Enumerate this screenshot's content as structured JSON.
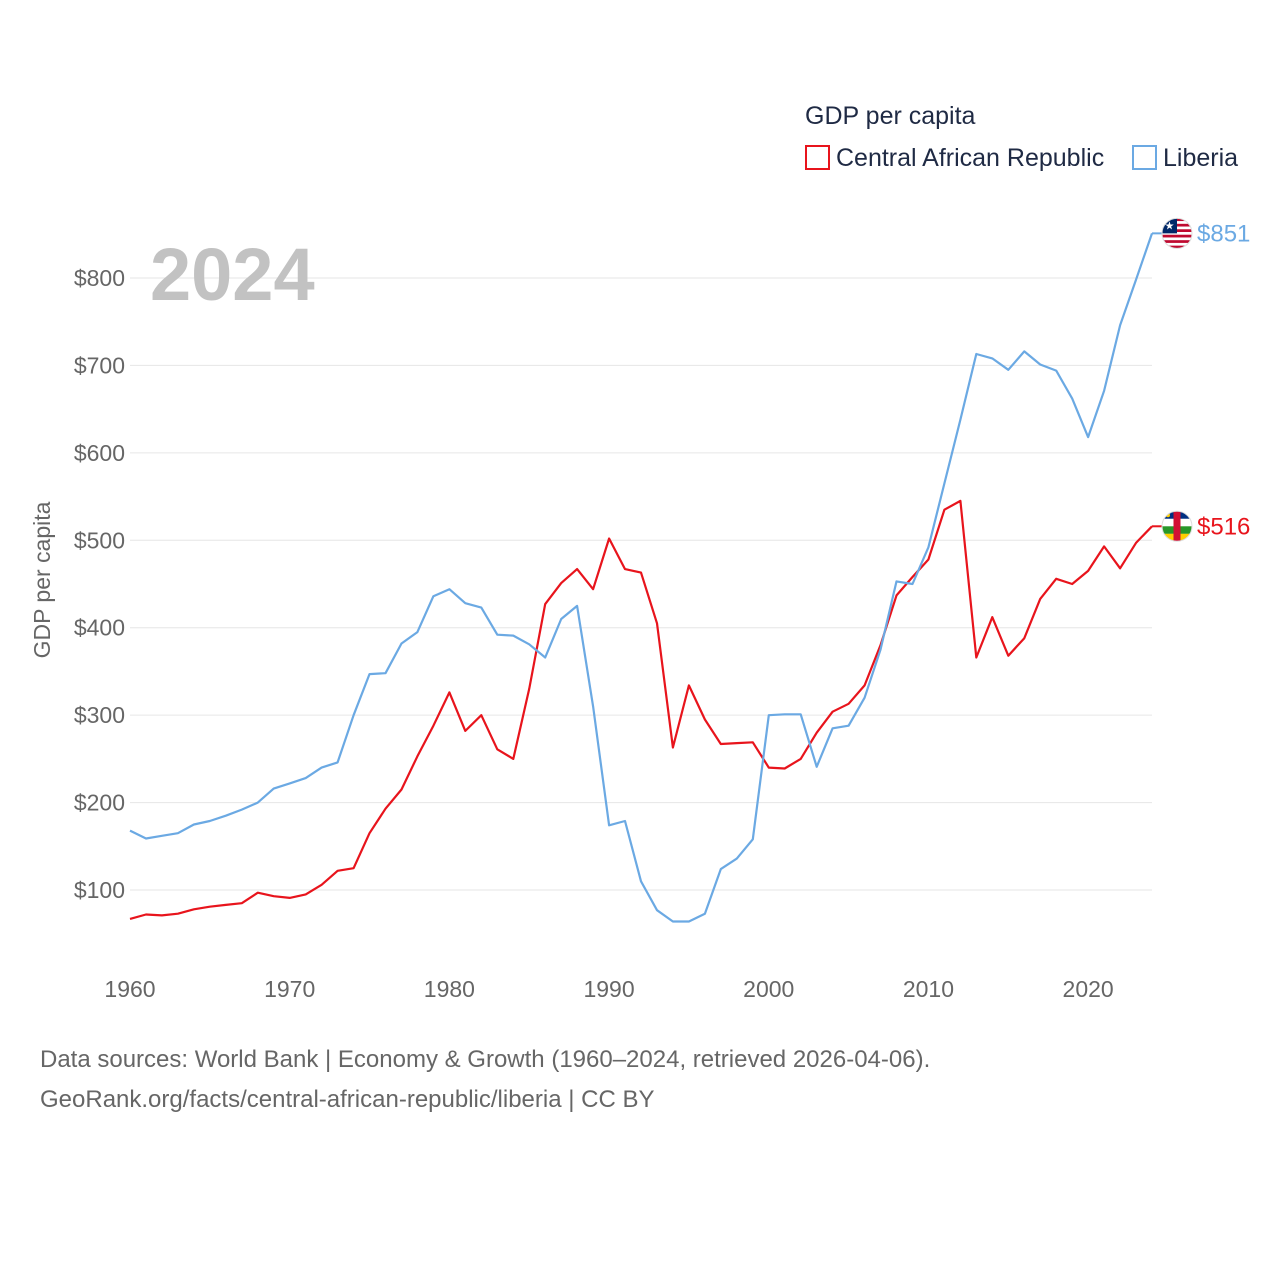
{
  "chart_data": {
    "type": "line",
    "legend_title": "GDP per capita",
    "ylabel": "GDP per capita",
    "year_label": "2024",
    "x": [
      1960,
      1961,
      1962,
      1963,
      1964,
      1965,
      1966,
      1967,
      1968,
      1969,
      1970,
      1971,
      1972,
      1973,
      1974,
      1975,
      1976,
      1977,
      1978,
      1979,
      1980,
      1981,
      1982,
      1983,
      1984,
      1985,
      1986,
      1987,
      1988,
      1989,
      1990,
      1991,
      1992,
      1993,
      1994,
      1995,
      1996,
      1997,
      1998,
      1999,
      2000,
      2001,
      2002,
      2003,
      2004,
      2005,
      2006,
      2007,
      2008,
      2009,
      2010,
      2011,
      2012,
      2013,
      2014,
      2015,
      2016,
      2017,
      2018,
      2019,
      2020,
      2021,
      2022,
      2023,
      2024
    ],
    "xlim": [
      1960,
      2024
    ],
    "ylim": [
      20,
      880
    ],
    "x_ticks": [
      1960,
      1970,
      1980,
      1990,
      2000,
      2010,
      2020
    ],
    "x_tick_labels": [
      "1960",
      "1970",
      "1980",
      "1990",
      "2000",
      "2010",
      "2020"
    ],
    "y_ticks": [
      100,
      200,
      300,
      400,
      500,
      600,
      700,
      800
    ],
    "y_tick_labels": [
      "$100",
      "$200",
      "$300",
      "$400",
      "$500",
      "$600",
      "$700",
      "$800"
    ],
    "series": [
      {
        "name": "Central African Republic",
        "color": "#e8141c",
        "end_label": "$516",
        "flag_icon": "central-african-republic-flag-icon",
        "values": [
          67,
          72,
          71,
          73,
          78,
          81,
          83,
          85,
          97,
          93,
          91,
          95,
          106,
          122,
          125,
          165,
          193,
          215,
          253,
          288,
          326,
          282,
          300,
          261,
          250,
          330,
          427,
          451,
          467,
          444,
          502,
          467,
          463,
          405,
          263,
          334,
          295,
          267,
          268,
          269,
          240,
          239,
          250,
          280,
          304,
          313,
          334,
          380,
          437,
          458,
          478,
          535,
          545,
          366,
          412,
          368,
          388,
          433,
          456,
          450,
          465,
          493,
          468,
          497,
          516
        ]
      },
      {
        "name": "Liberia",
        "color": "#6ba9e3",
        "end_label": "$851",
        "flag_icon": "liberia-flag-icon",
        "values": [
          168,
          159,
          162,
          165,
          175,
          179,
          185,
          192,
          200,
          216,
          222,
          228,
          240,
          246,
          300,
          347,
          348,
          382,
          395,
          436,
          444,
          428,
          423,
          392,
          391,
          381,
          366,
          410,
          425,
          310,
          174,
          179,
          110,
          77,
          64,
          64,
          73,
          124,
          136,
          158,
          300,
          301,
          301,
          241,
          285,
          288,
          320,
          375,
          453,
          450,
          492,
          565,
          638,
          713,
          708,
          695,
          716,
          701,
          694,
          662,
          618,
          671,
          746,
          798,
          851
        ]
      }
    ]
  },
  "source_line_1": "Data sources: World Bank | Economy & Growth (1960–2024, retrieved 2026-04-06).",
  "source_line_2": "GeoRank.org/facts/central-african-republic/liberia | CC BY"
}
